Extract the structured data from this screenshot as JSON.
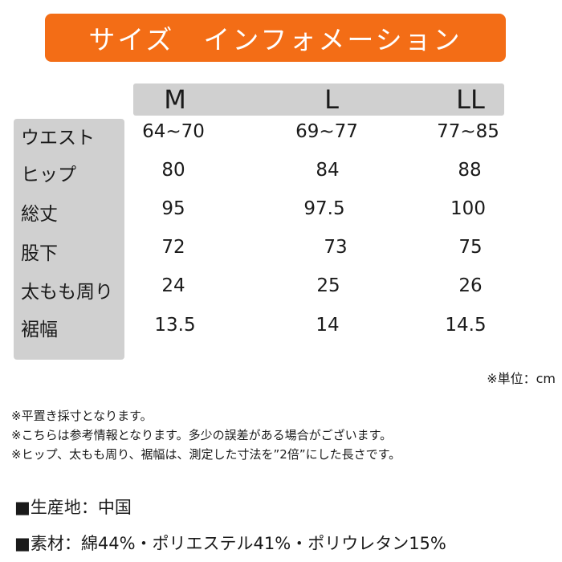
{
  "banner": {
    "title": "サイズ　インフォメーション"
  },
  "sizes": [
    "M",
    "L",
    "LL"
  ],
  "rows": [
    {
      "label": "ウエスト",
      "values": [
        "64~70",
        "69~77",
        "77~85"
      ]
    },
    {
      "label": "ヒップ",
      "values": [
        "80",
        "84",
        "88"
      ]
    },
    {
      "label": "総丈",
      "values": [
        "95",
        "97.5",
        "100"
      ]
    },
    {
      "label": "股下",
      "values": [
        "72",
        "73",
        "75"
      ]
    },
    {
      "label": "太もも周り",
      "values": [
        "24",
        "25",
        "26"
      ]
    },
    {
      "label": "裾幅",
      "values": [
        "13.5",
        "14",
        "14.5"
      ]
    }
  ],
  "unit": "※単位：cm",
  "notes": [
    "※平置き採寸となります。",
    "※こちらは参考情報となります。多少の誤差がある場合がございます。",
    "※ヒップ、太もも周り、裾幅は、測定した寸法を”2倍”にした長さです。"
  ],
  "info": [
    "■生産地：中国",
    "■素材：綿44%・ポリエステル41%・ポリウレタン15%"
  ]
}
